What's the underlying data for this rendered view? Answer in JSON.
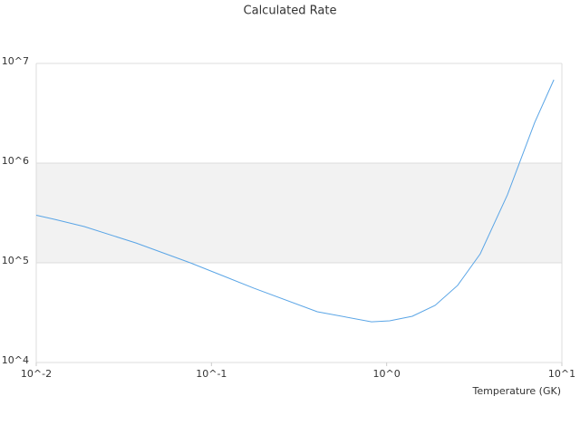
{
  "chart_data": {
    "type": "line",
    "title": "Calculated Rate",
    "x_label": "Temperature (GK)",
    "log_x": true,
    "log_y": true,
    "color": "#5aa5e6",
    "x": [
      0.01,
      0.0127,
      0.0188,
      0.0371,
      0.0757,
      0.175,
      0.402,
      0.82,
      1.04,
      1.4,
      1.89,
      2.54,
      3.42,
      4.89,
      7.0,
      9.0
    ],
    "values": [
      300000,
      273000,
      231000,
      158000,
      100000,
      55600,
      32300,
      25600,
      26200,
      29100,
      37400,
      59300,
      123000,
      481000,
      2560000,
      6860000
    ],
    "xlim": [
      0.01,
      10
    ],
    "xticks": [
      {
        "value": 0.01,
        "label": "10^-2"
      },
      {
        "value": 0.1,
        "label": "10^-1"
      },
      {
        "value": 1,
        "label": "10^0"
      },
      {
        "value": 10,
        "label": "10^1"
      }
    ],
    "ylim": [
      10000,
      10000000
    ],
    "yticks": [
      {
        "value": 10000,
        "label": "10^4"
      },
      {
        "value": 100000,
        "label": "10^5"
      },
      {
        "value": 1000000,
        "label": "10^6"
      },
      {
        "value": 10000000,
        "label": "10^7"
      }
    ],
    "grid": true
  }
}
